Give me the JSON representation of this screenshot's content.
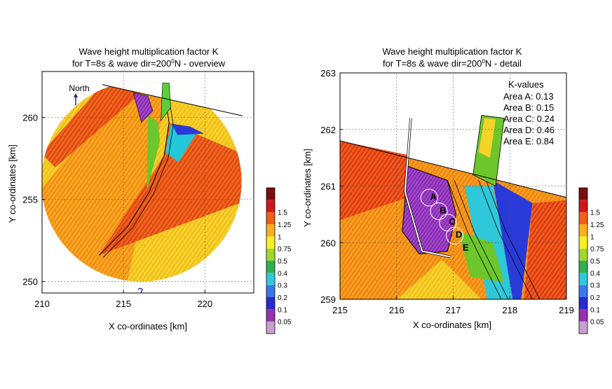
{
  "figure": {
    "colorbar_levels": [
      "0.05",
      "0.1",
      "0.2",
      "0.3",
      "0.4",
      "0.5",
      "0.75",
      "1",
      "1.25",
      "1.5"
    ],
    "colorbar_colors": [
      "#c8a0d0",
      "#9a30b0",
      "#2a2ad0",
      "#3878e8",
      "#30c8e0",
      "#30b050",
      "#a0d830",
      "#f8f020",
      "#f8b020",
      "#f06018",
      "#d01818",
      "#7a1010"
    ],
    "legend_scale": "K"
  },
  "chart_data": [
    {
      "type": "heatmap",
      "title": "Wave height multiplication factor K",
      "subtitle": "for T=8s & wave dir=200⁰N - overview",
      "title_line1": "Wave height multiplication factor K",
      "title_line2_prefix": "for T=8s & wave dir=200",
      "title_line2_sup": "0",
      "title_line2_suffix": "N - overview",
      "xlabel": "X co-ordinates [km]",
      "ylabel": "Y co-ordinates [km]",
      "xlim": [
        210,
        223
      ],
      "ylim": [
        249.3,
        262.8
      ],
      "xticks": [
        210,
        215,
        220
      ],
      "yticks": [
        250,
        255,
        260
      ],
      "grid": true,
      "annotations": [
        {
          "text": "North",
          "x": 212.2,
          "y": 262.3
        }
      ],
      "domain_circle": {
        "cx": 216.1,
        "cy": 256.1,
        "r": 6.15
      },
      "cut_line": {
        "from": [
          213.7,
          262.0
        ],
        "to": [
          222.3,
          260.1
        ]
      },
      "channel_centerline": [
        [
          213.5,
          251.6
        ],
        [
          215.3,
          253.4
        ],
        [
          216.6,
          255.5
        ],
        [
          217.5,
          257.7
        ],
        [
          217.8,
          259.7
        ],
        [
          217.4,
          262.1
        ]
      ],
      "colorbar": {
        "levels": [
          0.05,
          0.1,
          0.2,
          0.3,
          0.4,
          0.5,
          0.75,
          1,
          1.25,
          1.5
        ]
      }
    },
    {
      "type": "heatmap",
      "title": "Wave height multiplication factor K",
      "subtitle": "for T=8s & wave dir=200⁰N - detail",
      "title_line1": "Wave height multiplication factor K",
      "title_line2_prefix": "for T=8s & wave dir=200",
      "title_line2_sup": "0",
      "title_line2_suffix": "N - detail",
      "xlabel": "X co-ordinates [km]",
      "ylabel": "Y co-ordinates [km]",
      "xlim": [
        215,
        219
      ],
      "ylim": [
        259,
        263
      ],
      "xticks": [
        215,
        216,
        217,
        218,
        219
      ],
      "yticks": [
        259,
        260,
        261,
        262,
        263
      ],
      "grid": true,
      "areas": [
        {
          "label": "A",
          "x": 216.65,
          "y": 260.82
        },
        {
          "label": "B",
          "x": 216.82,
          "y": 260.58
        },
        {
          "label": "C",
          "x": 216.98,
          "y": 260.38
        },
        {
          "label": "D",
          "x": 217.1,
          "y": 260.15
        },
        {
          "label": "E",
          "x": 217.22,
          "y": 259.92
        }
      ],
      "k_values_title": "K-values",
      "k_values": [
        {
          "label": "Area A",
          "value": 0.13,
          "text": "Area A: 0.13"
        },
        {
          "label": "Area B",
          "value": 0.15,
          "text": "Area B: 0.15"
        },
        {
          "label": "Area C",
          "value": 0.24,
          "text": "Area C: 0.24"
        },
        {
          "label": "Area D",
          "value": 0.46,
          "text": "Area D: 0.46"
        },
        {
          "label": "Area E",
          "value": 0.84,
          "text": "Area E: 0.84"
        }
      ],
      "colorbar": {
        "levels": [
          0.05,
          0.1,
          0.2,
          0.3,
          0.4,
          0.5,
          0.75,
          1,
          1.25,
          1.5
        ]
      }
    }
  ]
}
